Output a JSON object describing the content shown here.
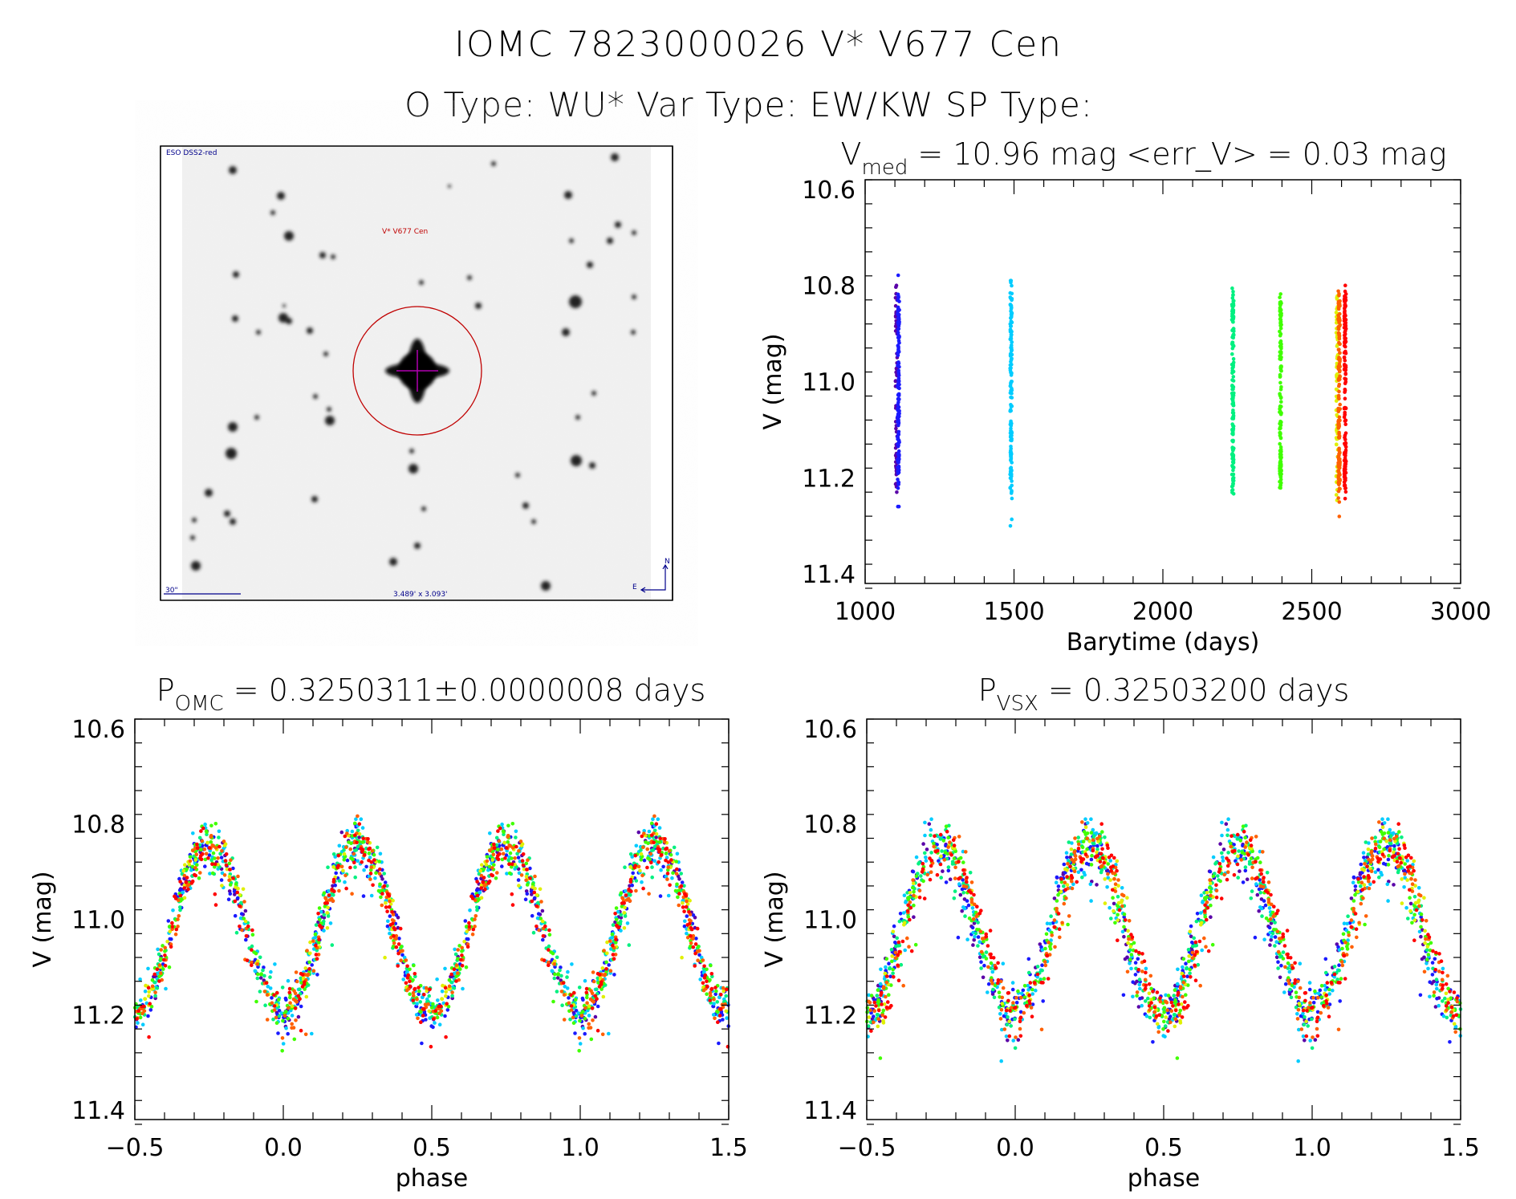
{
  "header": {
    "title": "IOMC 7823000026   V* V677 Cen",
    "types": "O Type: WU*  Var Type: EW/KW  SP Type:"
  },
  "sky_image": {
    "survey_label": "ESO DSS2-red",
    "target_label": "V* V677 Cen",
    "scale_label": "30\"",
    "field_size_label": "3.489' x 3.093'",
    "north_label": "N",
    "east_label": "E",
    "label_color": "#00008b",
    "target_color": "#c00000"
  },
  "chart_data": [
    {
      "type": "scatter",
      "title_symbol": "V",
      "title_sub": "med",
      "title_rest": "= 10.96 mag <err_V> = 0.03 mag",
      "xlabel": "Barytime (days)",
      "ylabel": "V (mag)",
      "xlim": [
        1000,
        3000
      ],
      "ylim": [
        11.42,
        10.58
      ],
      "xticks": [
        "1000",
        "1500",
        "2000",
        "2500",
        "3000"
      ],
      "yticks": [
        "10.6",
        "10.8",
        "11.0",
        "11.2",
        "11.4"
      ],
      "seasons": [
        {
          "barytime": 1105,
          "color": "#5a00a8",
          "v_range": [
            10.8,
            11.34
          ]
        },
        {
          "barytime": 1112,
          "color": "#1a1aff",
          "v_range": [
            10.76,
            11.26
          ]
        },
        {
          "barytime": 1490,
          "color": "#00ccff",
          "v_range": [
            10.79,
            11.39
          ]
        },
        {
          "barytime": 2235,
          "color": "#00f080",
          "v_range": [
            10.71,
            11.27
          ]
        },
        {
          "barytime": 2395,
          "color": "#40ff00",
          "v_range": [
            10.79,
            11.33
          ]
        },
        {
          "barytime": 2585,
          "color": "#e0f000",
          "v_range": [
            10.8,
            11.34
          ]
        },
        {
          "barytime": 2592,
          "color": "#ff6000",
          "v_range": [
            10.78,
            11.3
          ]
        },
        {
          "barytime": 2612,
          "color": "#ff0000",
          "v_range": [
            10.8,
            11.31
          ]
        }
      ]
    },
    {
      "type": "scatter",
      "title_symbol": "P",
      "title_sub": "OMC",
      "title_rest": "= 0.3250311±0.0000008 days",
      "xlabel": "phase",
      "ylabel": "V (mag)",
      "xlim": [
        -0.5,
        1.5
      ],
      "ylim": [
        11.42,
        10.58
      ],
      "xticks": [
        "−0.5",
        "0.0",
        "0.5",
        "1.0",
        "1.5"
      ],
      "yticks": [
        "10.6",
        "10.8",
        "11.0",
        "11.2",
        "11.4"
      ],
      "mean_curve": {
        "phase": [
          0.0,
          0.05,
          0.1,
          0.15,
          0.2,
          0.25
        ],
        "V": [
          11.2,
          11.17,
          11.08,
          10.96,
          10.87,
          10.84
        ]
      }
    },
    {
      "type": "scatter",
      "title_symbol": "P",
      "title_sub": "VSX",
      "title_rest": "= 0.32503200 days",
      "xlabel": "phase",
      "ylabel": "V (mag)",
      "xlim": [
        -0.5,
        1.5
      ],
      "ylim": [
        11.42,
        10.58
      ],
      "xticks": [
        "−0.5",
        "0.0",
        "0.5",
        "1.0",
        "1.5"
      ],
      "yticks": [
        "10.6",
        "10.8",
        "11.0",
        "11.2",
        "11.4"
      ],
      "mean_curve": {
        "phase": [
          0.0,
          0.05,
          0.1,
          0.15,
          0.2,
          0.25
        ],
        "V": [
          11.2,
          11.17,
          11.08,
          10.96,
          10.87,
          10.84
        ]
      }
    }
  ]
}
